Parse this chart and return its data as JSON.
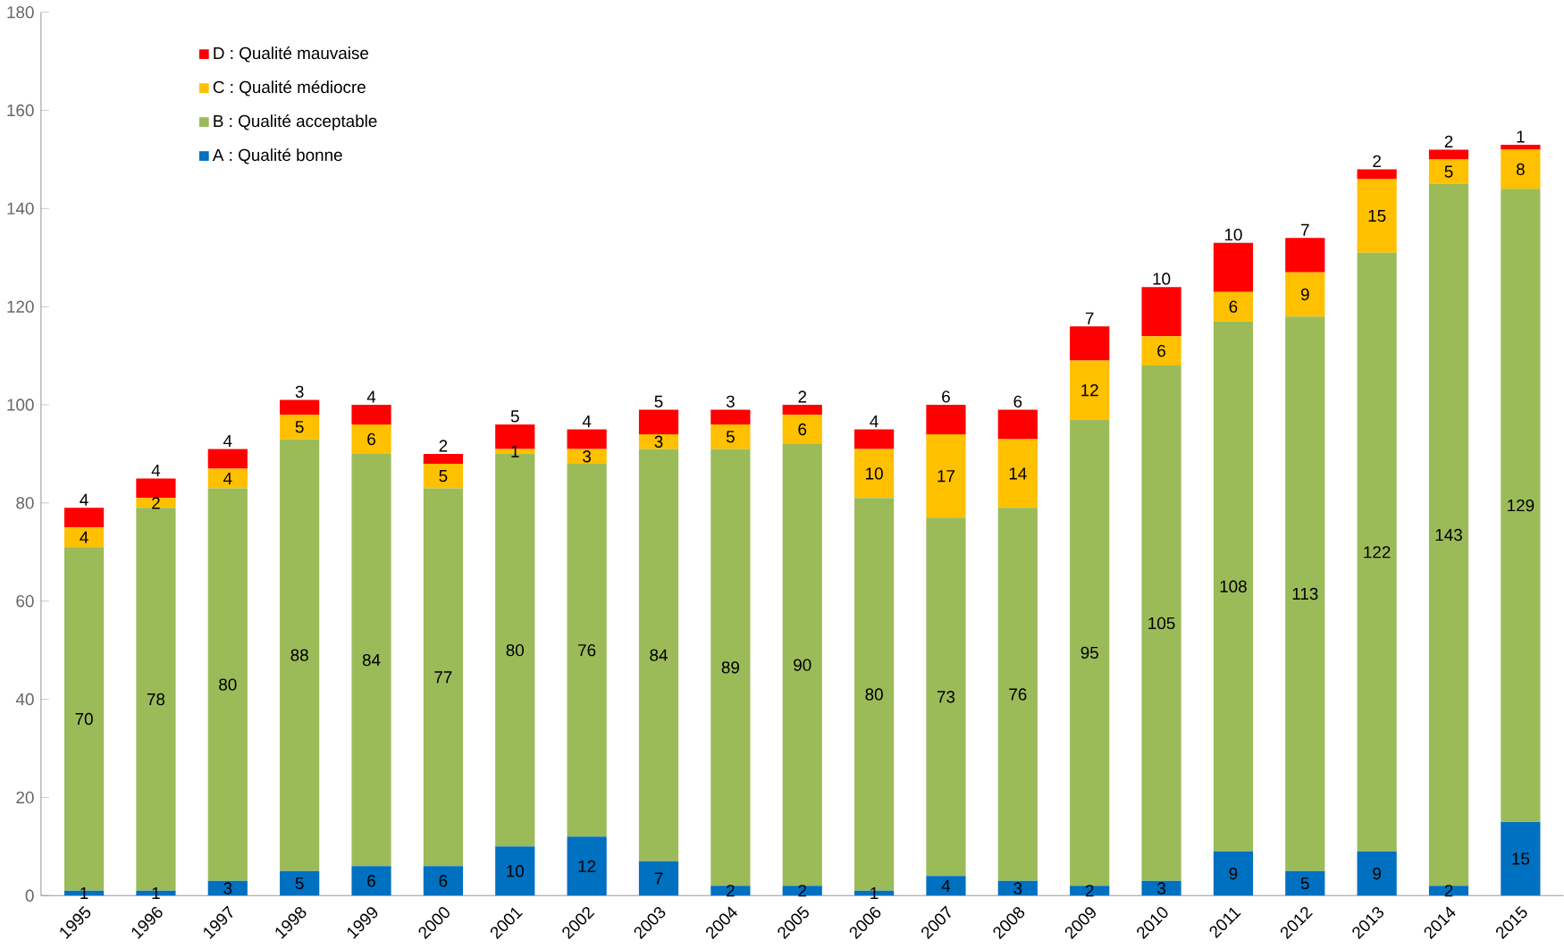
{
  "chart_data": {
    "type": "bar",
    "stacked": true,
    "categories": [
      "1995",
      "1996",
      "1997",
      "1998",
      "1999",
      "2000",
      "2001",
      "2002",
      "2003",
      "2004",
      "2005",
      "2006",
      "2007",
      "2008",
      "2009",
      "2010",
      "2011",
      "2012",
      "2013",
      "2014",
      "2015"
    ],
    "series": [
      {
        "name": "A : Qualité bonne",
        "color": "#0070c0",
        "values": [
          1,
          1,
          3,
          5,
          6,
          6,
          10,
          12,
          7,
          2,
          2,
          1,
          4,
          3,
          2,
          3,
          9,
          5,
          9,
          2,
          15
        ]
      },
      {
        "name": "B : Qualité acceptable",
        "color": "#9bbb59",
        "values": [
          70,
          78,
          80,
          88,
          84,
          77,
          80,
          76,
          84,
          89,
          90,
          80,
          73,
          76,
          95,
          105,
          108,
          113,
          122,
          143,
          129
        ]
      },
      {
        "name": "C : Qualité médiocre",
        "color": "#ffc000",
        "values": [
          4,
          2,
          4,
          5,
          6,
          5,
          1,
          3,
          3,
          5,
          6,
          10,
          17,
          14,
          12,
          6,
          6,
          9,
          15,
          5,
          8
        ]
      },
      {
        "name": "D : Qualité mauvaise",
        "color": "#ff0000",
        "values": [
          4,
          4,
          4,
          3,
          4,
          2,
          5,
          4,
          5,
          3,
          2,
          4,
          6,
          6,
          7,
          10,
          10,
          7,
          2,
          2,
          1
        ]
      }
    ],
    "ylim": [
      0,
      180
    ],
    "yticks": [
      0,
      20,
      40,
      60,
      80,
      100,
      120,
      140,
      160,
      180
    ],
    "data_labels": true,
    "legend": "top left",
    "grid": false
  }
}
